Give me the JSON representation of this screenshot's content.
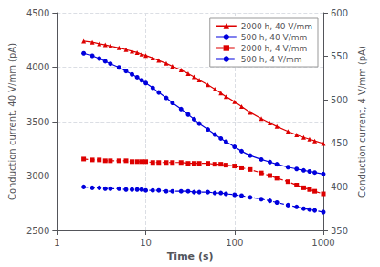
{
  "chart_data": {
    "type": "line",
    "xlabel": "Time (s)",
    "ylabel": "Conduction current, 40 V/mm (pA)",
    "y2label": "Conduction current, 4 V/mm (pA)",
    "log": "x",
    "grid": true,
    "legend": "upper right",
    "xlim": [
      1,
      1000
    ],
    "xticks": [
      1,
      10,
      100,
      1000
    ],
    "ylim": [
      2500,
      4500
    ],
    "yticks": [
      2500,
      3000,
      3500,
      4000,
      4500
    ],
    "y2lim": [
      350,
      600
    ],
    "y2ticks": [
      350,
      400,
      450,
      500,
      550,
      600
    ],
    "x": [
      2,
      2.5,
      3,
      3.5,
      4,
      5,
      6,
      7,
      8,
      9,
      10,
      12,
      14,
      17,
      20,
      25,
      30,
      35,
      40,
      50,
      60,
      70,
      80,
      100,
      120,
      150,
      200,
      250,
      300,
      400,
      500,
      600,
      700,
      800,
      1000
    ],
    "series": [
      {
        "name": "2000 h, 40 V/mm",
        "color": "#dd0000",
        "marker": "triangle",
        "line_style": "solid",
        "values": [
          4240,
          4230,
          4215,
          4205,
          4195,
          4178,
          4162,
          4148,
          4135,
          4120,
          4108,
          4085,
          4062,
          4035,
          4008,
          3975,
          3942,
          3912,
          3882,
          3838,
          3798,
          3762,
          3730,
          3682,
          3638,
          3585,
          3528,
          3488,
          3455,
          3410,
          3378,
          3355,
          3338,
          3322,
          3298
        ]
      },
      {
        "name": "500 h, 40 V/mm",
        "color": "#0000dd",
        "marker": "circle",
        "line_style": "solid",
        "values": [
          4128,
          4105,
          4080,
          4055,
          4032,
          3998,
          3965,
          3935,
          3908,
          3880,
          3855,
          3810,
          3768,
          3718,
          3672,
          3615,
          3565,
          3522,
          3482,
          3428,
          3382,
          3345,
          3315,
          3268,
          3228,
          3188,
          3152,
          3128,
          3108,
          3082,
          3065,
          3052,
          3042,
          3032,
          3018
        ]
      },
      {
        "name": "2000 h, 4 V/mm",
        "color": "#dd0000",
        "marker": "square",
        "line_style": "dashed",
        "axis": "y2",
        "values": [
          432,
          431,
          431,
          430,
          430,
          430,
          430,
          429,
          429,
          429,
          429,
          428,
          428,
          428,
          428,
          428,
          427,
          427,
          427,
          427,
          426,
          426,
          425,
          424,
          422,
          420,
          416,
          413,
          410,
          406,
          402,
          399,
          397,
          395,
          392
        ]
      },
      {
        "name": "500 h, 4 V/mm",
        "color": "#0000dd",
        "marker": "circle",
        "line_style": "dashed",
        "axis": "y2",
        "values": [
          400,
          399,
          399,
          398,
          398,
          398,
          397,
          397,
          397,
          397,
          396,
          396,
          396,
          395,
          395,
          395,
          395,
          394,
          394,
          394,
          393,
          393,
          392,
          391,
          390,
          388,
          386,
          384,
          382,
          379,
          377,
          375,
          374,
          373,
          371
        ]
      }
    ]
  }
}
